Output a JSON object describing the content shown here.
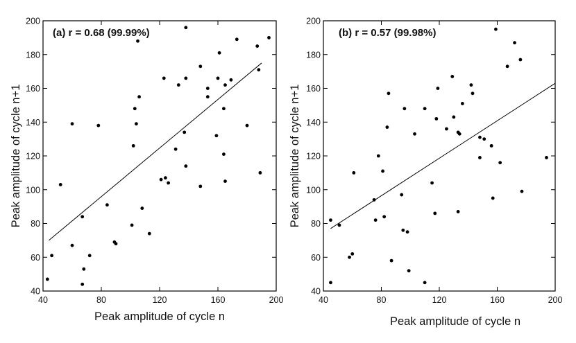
{
  "chart_data": [
    {
      "type": "scatter",
      "annotation": "(a) r = 0.68 (99.99%)",
      "xlabel": "Peak amplitude of cycle n",
      "ylabel": "Peak amplitude of cycle n+1",
      "xlim": [
        40,
        200
      ],
      "ylim": [
        40,
        200
      ],
      "xticks": [
        40,
        80,
        120,
        160,
        200
      ],
      "yticks": [
        40,
        60,
        80,
        100,
        120,
        140,
        160,
        180,
        200
      ],
      "xtick_labels": [
        "40",
        "80",
        "120",
        "160",
        "200"
      ],
      "ytick_labels": [
        "40",
        "60",
        "80",
        "100",
        "120",
        "140",
        "160",
        "180",
        "200"
      ],
      "grid": false,
      "fit_line": {
        "x": [
          44,
          190
        ],
        "y": [
          70,
          175
        ]
      },
      "points": [
        [
          43,
          47
        ],
        [
          46,
          61
        ],
        [
          52,
          103
        ],
        [
          60,
          67
        ],
        [
          60,
          139
        ],
        [
          67,
          84
        ],
        [
          67,
          44
        ],
        [
          68,
          53
        ],
        [
          72,
          61
        ],
        [
          78,
          138
        ],
        [
          84,
          91
        ],
        [
          89,
          69
        ],
        [
          90,
          68
        ],
        [
          101,
          79
        ],
        [
          102,
          126
        ],
        [
          103,
          148
        ],
        [
          104,
          139
        ],
        [
          105,
          188
        ],
        [
          106,
          155
        ],
        [
          108,
          89
        ],
        [
          113,
          74
        ],
        [
          121,
          106
        ],
        [
          123,
          166
        ],
        [
          124,
          107
        ],
        [
          126,
          104
        ],
        [
          131,
          124
        ],
        [
          133,
          162
        ],
        [
          137,
          134
        ],
        [
          138,
          166
        ],
        [
          138,
          114
        ],
        [
          138,
          196
        ],
        [
          148,
          102
        ],
        [
          148,
          173
        ],
        [
          153,
          155
        ],
        [
          153,
          160
        ],
        [
          159,
          132
        ],
        [
          160,
          166
        ],
        [
          161,
          181
        ],
        [
          164,
          121
        ],
        [
          164,
          148
        ],
        [
          165,
          105
        ],
        [
          165,
          162
        ],
        [
          169,
          165
        ],
        [
          173,
          189
        ],
        [
          180,
          138
        ],
        [
          187,
          185
        ],
        [
          188,
          171
        ],
        [
          189,
          110
        ],
        [
          195,
          190
        ]
      ]
    },
    {
      "type": "scatter",
      "annotation": "(b) r = 0.57 (99.98%)",
      "xlabel": "Peak amplitude of cycle n",
      "ylabel": "Peak amplitude of cycle n+1",
      "xlim": [
        40,
        200
      ],
      "ylim": [
        40,
        200
      ],
      "xticks": [
        40,
        80,
        120,
        160,
        200
      ],
      "yticks": [
        40,
        60,
        80,
        100,
        120,
        140,
        160,
        180,
        200
      ],
      "xtick_labels": [
        "40",
        "80",
        "120",
        "160",
        "200"
      ],
      "ytick_labels": [
        "40",
        "60",
        "80",
        "100",
        "120",
        "140",
        "160",
        "180",
        "200"
      ],
      "grid": false,
      "fit_line": {
        "x": [
          45,
          200
        ],
        "y": [
          77,
          163
        ]
      },
      "points": [
        [
          45,
          82
        ],
        [
          45,
          45
        ],
        [
          51,
          79
        ],
        [
          58,
          60
        ],
        [
          60,
          62
        ],
        [
          61,
          110
        ],
        [
          75,
          94
        ],
        [
          76,
          82
        ],
        [
          78,
          120
        ],
        [
          81,
          111
        ],
        [
          82,
          84
        ],
        [
          84,
          137
        ],
        [
          85,
          157
        ],
        [
          87,
          58
        ],
        [
          94,
          97
        ],
        [
          95,
          76
        ],
        [
          96,
          148
        ],
        [
          98,
          75
        ],
        [
          99,
          52
        ],
        [
          103,
          133
        ],
        [
          110,
          148
        ],
        [
          110,
          45
        ],
        [
          115,
          104
        ],
        [
          117,
          86
        ],
        [
          118,
          142
        ],
        [
          119,
          160
        ],
        [
          125,
          136
        ],
        [
          129,
          167
        ],
        [
          130,
          143
        ],
        [
          133,
          134
        ],
        [
          133,
          87
        ],
        [
          134,
          133
        ],
        [
          136,
          151
        ],
        [
          142,
          162
        ],
        [
          143,
          157
        ],
        [
          148,
          131
        ],
        [
          148,
          119
        ],
        [
          151,
          130
        ],
        [
          156,
          126
        ],
        [
          157,
          95
        ],
        [
          159,
          195
        ],
        [
          162,
          116
        ],
        [
          167,
          173
        ],
        [
          172,
          187
        ],
        [
          176,
          177
        ],
        [
          177,
          99
        ],
        [
          194,
          119
        ]
      ]
    }
  ]
}
